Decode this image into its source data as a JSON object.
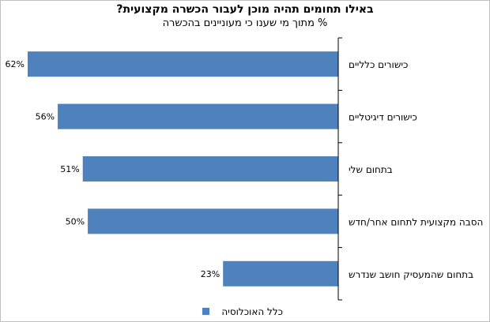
{
  "chart_data": {
    "type": "bar",
    "orientation": "horizontal",
    "title": "באילו תחומים תהיה מוכן לעבור הכשרה מקצועית?",
    "subtitle": "% מתוך מי שענו כי מעוניינים בהכשרה",
    "categories": [
      "כישורים כלליים",
      "כישורים דיגיטליים",
      "בתחום שלי",
      "הסבה מקצועית לתחום אחר/חדש",
      "בתחום שהמעסיק חושב שנדרש"
    ],
    "series": [
      {
        "name": "כלל האוכלוסיה",
        "values": [
          62,
          56,
          51,
          50,
          23
        ],
        "labels": [
          "62%",
          "56%",
          "51%",
          "50%",
          "23%"
        ],
        "color": "#4f81bd"
      }
    ],
    "xlim": [
      0,
      70
    ],
    "legend": "bottom",
    "grid": false
  }
}
